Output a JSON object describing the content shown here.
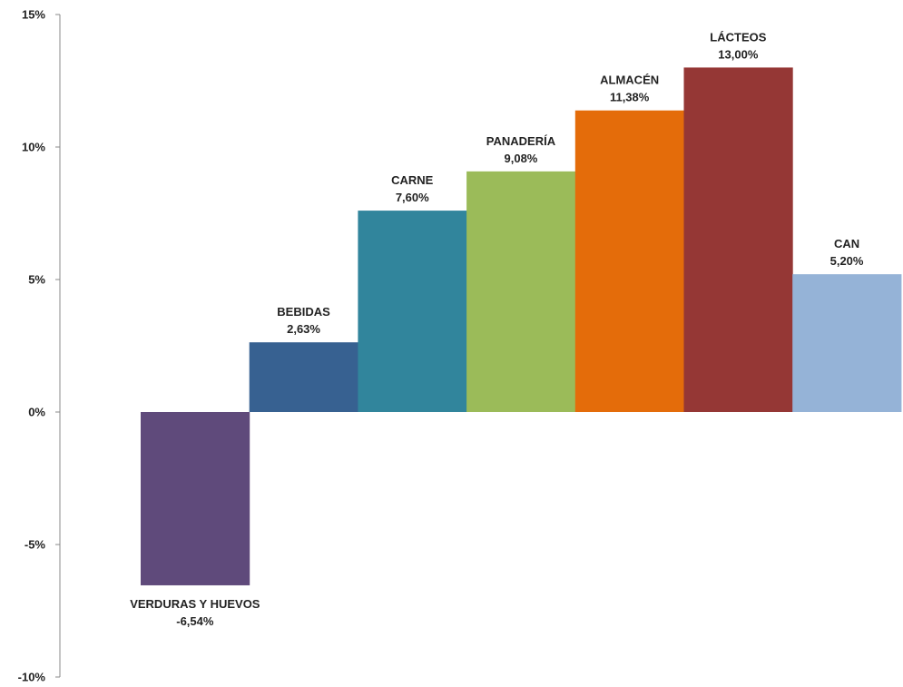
{
  "chart_data": {
    "type": "bar",
    "title": "",
    "xlabel": "",
    "ylabel": "",
    "ylim": [
      -10,
      15
    ],
    "yticks": [
      15,
      10,
      5,
      0,
      -5,
      -10
    ],
    "ytick_labels": [
      "15%",
      "10%",
      "5%",
      "0%",
      "-5%",
      "-10%"
    ],
    "grid": false,
    "categories": [
      "VERDURAS Y HUEVOS",
      "BEBIDAS",
      "CARNE",
      "PANADERÍA",
      "ALMACÉN",
      "LÁCTEOS",
      "CAN"
    ],
    "values": [
      -6.54,
      2.63,
      7.6,
      9.08,
      11.38,
      13.0,
      5.2
    ],
    "value_labels": [
      "-6,54%",
      "2,63%",
      "7,60%",
      "9,08%",
      "11,38%",
      "13,00%",
      "5,20%"
    ],
    "colors": [
      "#5f4a7b",
      "#376191",
      "#31859c",
      "#9bbb59",
      "#e46c0a",
      "#953735",
      "#95b3d7"
    ]
  }
}
